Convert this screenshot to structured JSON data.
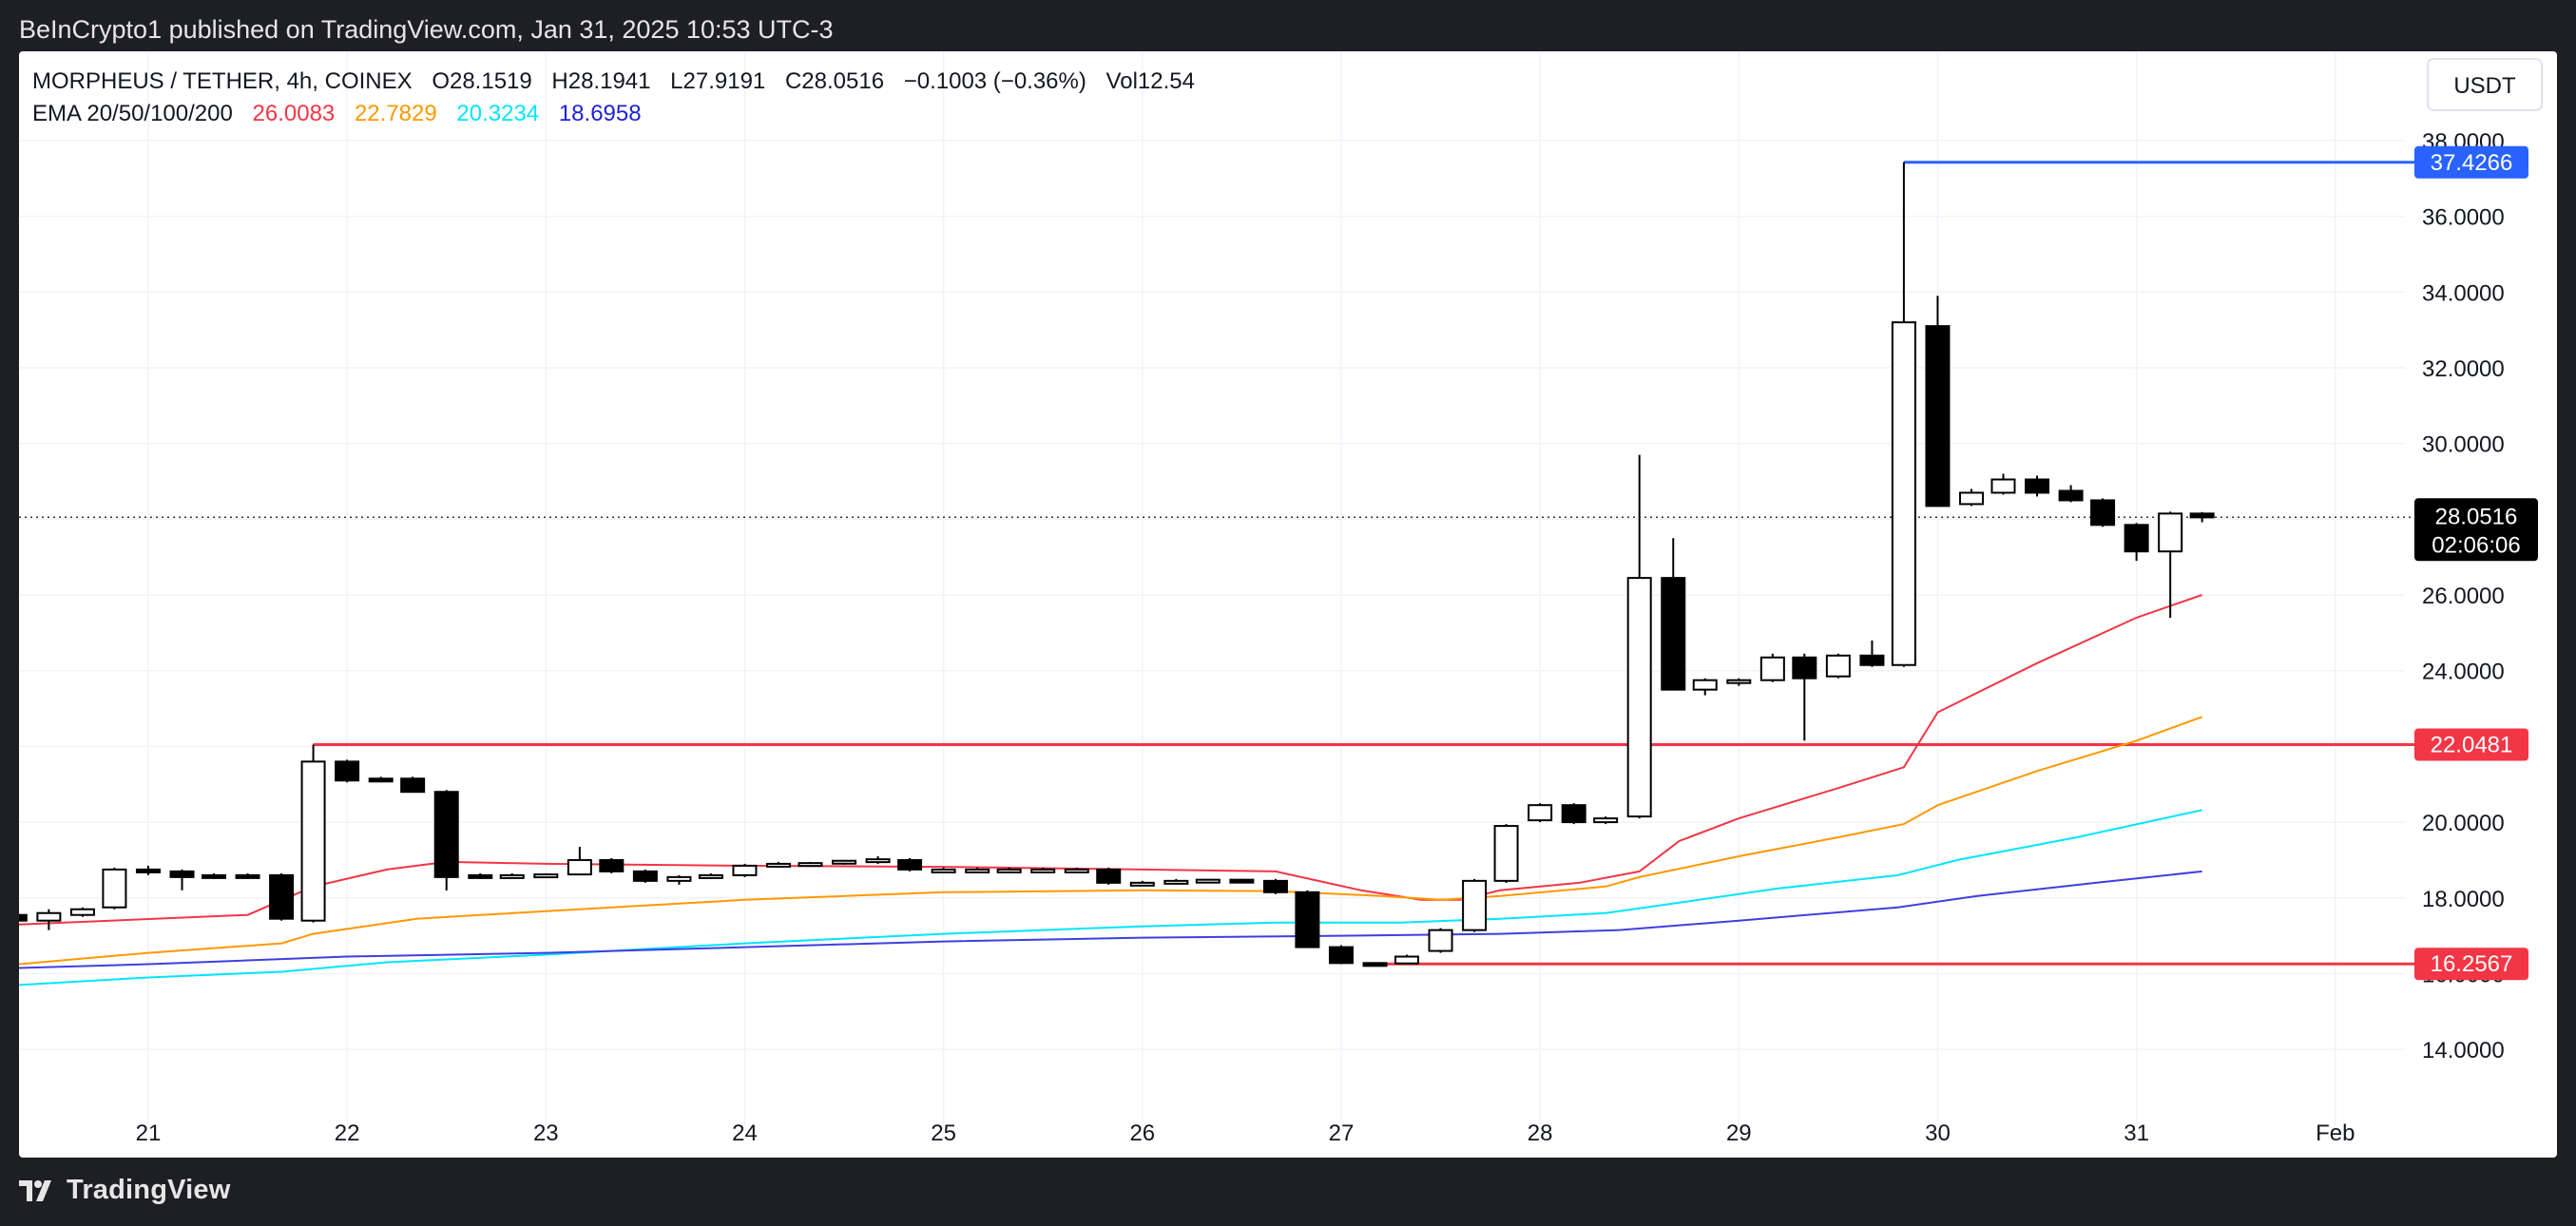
{
  "header": {
    "published_text": "BeInCrypto1 published on TradingView.com, Jan 31, 2025 10:53 UTC-3"
  },
  "legend": {
    "symbol": "MORPHEUS / TETHER, 4h, COINEX",
    "open": "O28.1519",
    "high": "H28.1941",
    "low": "L27.9191",
    "close": "C28.0516",
    "change": "−0.1003 (−0.36%)",
    "volume": "Vol12.54",
    "ema_label": "EMA 20/50/100/200",
    "ema_values": [
      {
        "value": "26.0083",
        "color": "#f23645"
      },
      {
        "value": "22.7829",
        "color": "#ff9800"
      },
      {
        "value": "20.3234",
        "color": "#00e5ff"
      },
      {
        "value": "18.6958",
        "color": "#1e22d6"
      }
    ]
  },
  "currency_button": "USDT",
  "price_tags": {
    "current_price": "28.0516",
    "countdown": "02:06:06",
    "resistance_high": "37.4266",
    "level_mid": "22.0481",
    "support_low": "16.2567"
  },
  "footer": {
    "brand": "TradingView"
  },
  "colors": {
    "up_candle": "#ffffff",
    "down_candle": "#000000",
    "level_red": "#f23645",
    "level_blue": "#2962ff",
    "ema20": "#f23645",
    "ema50": "#ff9800",
    "ema100": "#00e5ff",
    "ema200": "#3f3fe0"
  },
  "chart_data": {
    "type": "candlestick",
    "symbol": "MORPHEUS / TETHER",
    "timeframe": "4h",
    "ylim": [
      13.0,
      38.6
    ],
    "y_ticks": [
      14,
      16,
      18,
      20,
      22,
      24,
      26,
      28,
      30,
      32,
      34,
      36,
      38
    ],
    "y_tick_labels": [
      "14.0000",
      "16.0000",
      "18.0000",
      "20.0000",
      "22.0000",
      "24.0000",
      "26.0000",
      "28.0000",
      "30.0000",
      "32.0000",
      "34.0000",
      "36.0000",
      "38.0000"
    ],
    "x_ticks": [
      21,
      22,
      23,
      24,
      25,
      26,
      27,
      28,
      29,
      30,
      31,
      32
    ],
    "x_tick_labels": [
      "21",
      "22",
      "23",
      "24",
      "25",
      "26",
      "27",
      "28",
      "29",
      "30",
      "31",
      "Feb"
    ],
    "xlim": [
      20.35,
      32.35
    ],
    "candles": [
      {
        "t": 20.33,
        "o": 17.55,
        "h": 17.7,
        "l": 17.2,
        "c": 17.4
      },
      {
        "t": 20.5,
        "o": 17.4,
        "h": 17.7,
        "l": 17.15,
        "c": 17.6
      },
      {
        "t": 20.67,
        "o": 17.55,
        "h": 17.75,
        "l": 17.5,
        "c": 17.7
      },
      {
        "t": 20.83,
        "o": 17.75,
        "h": 18.8,
        "l": 17.7,
        "c": 18.75
      },
      {
        "t": 21.0,
        "o": 18.75,
        "h": 18.85,
        "l": 18.6,
        "c": 18.7
      },
      {
        "t": 21.17,
        "o": 18.7,
        "h": 18.75,
        "l": 18.2,
        "c": 18.55
      },
      {
        "t": 21.33,
        "o": 18.6,
        "h": 18.65,
        "l": 18.5,
        "c": 18.55
      },
      {
        "t": 21.5,
        "o": 18.6,
        "h": 18.65,
        "l": 18.5,
        "c": 18.55
      },
      {
        "t": 21.67,
        "o": 18.6,
        "h": 18.65,
        "l": 17.4,
        "c": 17.45
      },
      {
        "t": 21.83,
        "o": 17.4,
        "h": 22.05,
        "l": 17.35,
        "c": 21.6
      },
      {
        "t": 22.0,
        "o": 21.6,
        "h": 21.65,
        "l": 21.05,
        "c": 21.1
      },
      {
        "t": 22.17,
        "o": 21.15,
        "h": 21.2,
        "l": 21.05,
        "c": 21.1
      },
      {
        "t": 22.33,
        "o": 21.15,
        "h": 21.2,
        "l": 20.8,
        "c": 20.8
      },
      {
        "t": 22.5,
        "o": 20.8,
        "h": 20.85,
        "l": 18.2,
        "c": 18.55
      },
      {
        "t": 22.67,
        "o": 18.6,
        "h": 18.65,
        "l": 18.5,
        "c": 18.55
      },
      {
        "t": 22.83,
        "o": 18.6,
        "h": 18.65,
        "l": 18.55,
        "c": 18.6
      },
      {
        "t": 23.0,
        "o": 18.6,
        "h": 18.65,
        "l": 18.55,
        "c": 18.62
      },
      {
        "t": 23.17,
        "o": 18.62,
        "h": 19.35,
        "l": 18.6,
        "c": 19.0
      },
      {
        "t": 23.33,
        "o": 19.0,
        "h": 19.05,
        "l": 18.65,
        "c": 18.7
      },
      {
        "t": 23.5,
        "o": 18.7,
        "h": 18.75,
        "l": 18.4,
        "c": 18.45
      },
      {
        "t": 23.67,
        "o": 18.45,
        "h": 18.6,
        "l": 18.35,
        "c": 18.55
      },
      {
        "t": 23.83,
        "o": 18.55,
        "h": 18.65,
        "l": 18.5,
        "c": 18.6
      },
      {
        "t": 24.0,
        "o": 18.6,
        "h": 18.9,
        "l": 18.55,
        "c": 18.85
      },
      {
        "t": 24.17,
        "o": 18.85,
        "h": 18.95,
        "l": 18.8,
        "c": 18.9
      },
      {
        "t": 24.33,
        "o": 18.9,
        "h": 18.95,
        "l": 18.85,
        "c": 18.92
      },
      {
        "t": 24.5,
        "o": 18.92,
        "h": 19.0,
        "l": 18.88,
        "c": 18.98
      },
      {
        "t": 24.67,
        "o": 18.98,
        "h": 19.1,
        "l": 18.9,
        "c": 19.02
      },
      {
        "t": 24.83,
        "o": 19.0,
        "h": 19.05,
        "l": 18.7,
        "c": 18.75
      },
      {
        "t": 25.0,
        "o": 18.75,
        "h": 18.8,
        "l": 18.7,
        "c": 18.75
      },
      {
        "t": 25.17,
        "o": 18.75,
        "h": 18.8,
        "l": 18.7,
        "c": 18.75
      },
      {
        "t": 25.33,
        "o": 18.75,
        "h": 18.8,
        "l": 18.7,
        "c": 18.75
      },
      {
        "t": 25.5,
        "o": 18.75,
        "h": 18.8,
        "l": 18.7,
        "c": 18.75
      },
      {
        "t": 25.67,
        "o": 18.75,
        "h": 18.8,
        "l": 18.7,
        "c": 18.75
      },
      {
        "t": 25.83,
        "o": 18.75,
        "h": 18.8,
        "l": 18.35,
        "c": 18.4
      },
      {
        "t": 26.0,
        "o": 18.4,
        "h": 18.45,
        "l": 18.35,
        "c": 18.4
      },
      {
        "t": 26.17,
        "o": 18.4,
        "h": 18.5,
        "l": 18.35,
        "c": 18.45
      },
      {
        "t": 26.33,
        "o": 18.45,
        "h": 18.5,
        "l": 18.4,
        "c": 18.48
      },
      {
        "t": 26.5,
        "o": 18.48,
        "h": 18.5,
        "l": 18.4,
        "c": 18.45
      },
      {
        "t": 26.67,
        "o": 18.45,
        "h": 18.5,
        "l": 18.1,
        "c": 18.15
      },
      {
        "t": 26.83,
        "o": 18.15,
        "h": 18.2,
        "l": 16.7,
        "c": 16.7
      },
      {
        "t": 27.0,
        "o": 16.7,
        "h": 16.75,
        "l": 16.25,
        "c": 16.28
      },
      {
        "t": 27.17,
        "o": 16.28,
        "h": 16.3,
        "l": 16.25,
        "c": 16.27
      },
      {
        "t": 27.33,
        "o": 16.27,
        "h": 16.5,
        "l": 16.25,
        "c": 16.45
      },
      {
        "t": 27.5,
        "o": 16.6,
        "h": 17.2,
        "l": 16.55,
        "c": 17.15
      },
      {
        "t": 27.67,
        "o": 17.15,
        "h": 18.5,
        "l": 17.1,
        "c": 18.45
      },
      {
        "t": 27.83,
        "o": 18.45,
        "h": 19.95,
        "l": 18.4,
        "c": 19.9
      },
      {
        "t": 28.0,
        "o": 20.05,
        "h": 20.5,
        "l": 20.0,
        "c": 20.45
      },
      {
        "t": 28.17,
        "o": 20.45,
        "h": 20.5,
        "l": 19.95,
        "c": 20.0
      },
      {
        "t": 28.33,
        "o": 20.0,
        "h": 20.15,
        "l": 19.95,
        "c": 20.1
      },
      {
        "t": 28.5,
        "o": 20.15,
        "h": 29.7,
        "l": 20.1,
        "c": 26.45
      },
      {
        "t": 28.67,
        "o": 26.45,
        "h": 27.5,
        "l": 23.5,
        "c": 23.5
      },
      {
        "t": 28.83,
        "o": 23.5,
        "h": 23.8,
        "l": 23.35,
        "c": 23.75
      },
      {
        "t": 29.0,
        "o": 23.7,
        "h": 23.8,
        "l": 23.6,
        "c": 23.75
      },
      {
        "t": 29.17,
        "o": 23.75,
        "h": 24.45,
        "l": 23.7,
        "c": 24.35
      },
      {
        "t": 29.33,
        "o": 24.35,
        "h": 24.45,
        "l": 22.15,
        "c": 23.8
      },
      {
        "t": 29.5,
        "o": 23.85,
        "h": 24.45,
        "l": 23.8,
        "c": 24.4
      },
      {
        "t": 29.67,
        "o": 24.4,
        "h": 24.8,
        "l": 24.1,
        "c": 24.15
      },
      {
        "t": 29.83,
        "o": 24.15,
        "h": 37.43,
        "l": 24.1,
        "c": 33.2
      },
      {
        "t": 30.0,
        "o": 33.1,
        "h": 33.9,
        "l": 28.35,
        "c": 28.35
      },
      {
        "t": 30.17,
        "o": 28.4,
        "h": 28.8,
        "l": 28.35,
        "c": 28.7
      },
      {
        "t": 30.33,
        "o": 28.7,
        "h": 29.2,
        "l": 28.65,
        "c": 29.05
      },
      {
        "t": 30.5,
        "o": 29.05,
        "h": 29.15,
        "l": 28.6,
        "c": 28.7
      },
      {
        "t": 30.67,
        "o": 28.75,
        "h": 28.9,
        "l": 28.45,
        "c": 28.5
      },
      {
        "t": 30.83,
        "o": 28.5,
        "h": 28.55,
        "l": 27.8,
        "c": 27.85
      },
      {
        "t": 31.0,
        "o": 27.85,
        "h": 27.9,
        "l": 26.9,
        "c": 27.15
      },
      {
        "t": 31.17,
        "o": 27.15,
        "h": 28.2,
        "l": 25.4,
        "c": 28.15
      },
      {
        "t": 31.33,
        "o": 28.15,
        "h": 28.19,
        "l": 27.92,
        "c": 28.05
      }
    ],
    "ema_series": [
      {
        "name": "EMA 20",
        "color": "#f23645",
        "points": [
          [
            20.35,
            17.3
          ],
          [
            21.5,
            17.55
          ],
          [
            21.83,
            18.3
          ],
          [
            22.2,
            18.75
          ],
          [
            22.5,
            18.95
          ],
          [
            23.0,
            18.9
          ],
          [
            24.0,
            18.85
          ],
          [
            25.0,
            18.82
          ],
          [
            26.0,
            18.75
          ],
          [
            26.67,
            18.7
          ],
          [
            27.1,
            18.2
          ],
          [
            27.4,
            17.95
          ],
          [
            27.6,
            17.95
          ],
          [
            27.8,
            18.2
          ],
          [
            28.2,
            18.4
          ],
          [
            28.5,
            18.7
          ],
          [
            28.7,
            19.5
          ],
          [
            29.0,
            20.1
          ],
          [
            29.5,
            20.9
          ],
          [
            29.83,
            21.45
          ],
          [
            30.0,
            22.9
          ],
          [
            30.5,
            24.2
          ],
          [
            31.0,
            25.4
          ],
          [
            31.33,
            26.0
          ]
        ]
      },
      {
        "name": "EMA 50",
        "color": "#ff9800",
        "points": [
          [
            20.35,
            16.25
          ],
          [
            21.0,
            16.55
          ],
          [
            21.67,
            16.8
          ],
          [
            21.83,
            17.05
          ],
          [
            22.35,
            17.45
          ],
          [
            23.0,
            17.65
          ],
          [
            24.0,
            17.95
          ],
          [
            25.0,
            18.15
          ],
          [
            26.0,
            18.2
          ],
          [
            26.67,
            18.18
          ],
          [
            27.2,
            18.05
          ],
          [
            27.5,
            17.95
          ],
          [
            27.8,
            18.05
          ],
          [
            28.33,
            18.3
          ],
          [
            28.5,
            18.55
          ],
          [
            29.0,
            19.1
          ],
          [
            29.5,
            19.6
          ],
          [
            29.83,
            19.95
          ],
          [
            30.0,
            20.45
          ],
          [
            30.5,
            21.35
          ],
          [
            31.0,
            22.15
          ],
          [
            31.33,
            22.78
          ]
        ]
      },
      {
        "name": "EMA 100",
        "color": "#00e5ff",
        "points": [
          [
            20.35,
            15.7
          ],
          [
            21.0,
            15.9
          ],
          [
            21.67,
            16.05
          ],
          [
            22.2,
            16.3
          ],
          [
            23.0,
            16.5
          ],
          [
            24.0,
            16.8
          ],
          [
            25.0,
            17.05
          ],
          [
            26.0,
            17.25
          ],
          [
            26.67,
            17.35
          ],
          [
            27.3,
            17.35
          ],
          [
            27.8,
            17.45
          ],
          [
            28.33,
            17.6
          ],
          [
            28.6,
            17.8
          ],
          [
            29.2,
            18.25
          ],
          [
            29.8,
            18.6
          ],
          [
            30.1,
            19.0
          ],
          [
            30.7,
            19.6
          ],
          [
            31.33,
            20.32
          ]
        ]
      },
      {
        "name": "EMA 200",
        "color": "#3f3fe0",
        "points": [
          [
            20.35,
            16.15
          ],
          [
            21.0,
            16.25
          ],
          [
            22.0,
            16.45
          ],
          [
            23.0,
            16.55
          ],
          [
            24.0,
            16.7
          ],
          [
            25.0,
            16.85
          ],
          [
            26.0,
            16.95
          ],
          [
            27.0,
            17.0
          ],
          [
            27.8,
            17.05
          ],
          [
            28.4,
            17.15
          ],
          [
            29.0,
            17.4
          ],
          [
            29.8,
            17.75
          ],
          [
            30.2,
            18.05
          ],
          [
            30.8,
            18.4
          ],
          [
            31.33,
            18.7
          ]
        ]
      }
    ],
    "horizontal_levels": [
      {
        "value": 37.4266,
        "color": "#2962ff",
        "x_start": 29.83
      },
      {
        "value": 22.0481,
        "color": "#f23645",
        "x_start": 21.83
      },
      {
        "value": 16.2567,
        "color": "#f23645",
        "x_start": 27.17
      }
    ],
    "current_price": 28.0516,
    "grid": true,
    "legend_position": "top-left"
  }
}
